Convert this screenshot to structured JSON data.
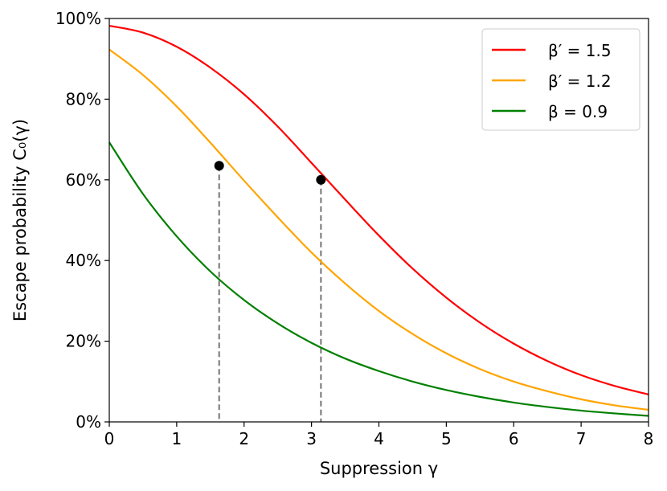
{
  "chart_data": {
    "type": "line",
    "xlabel": "Suppression γ",
    "ylabel": "Escape probability C₀(γ)",
    "xlim": [
      0,
      8
    ],
    "ylim": [
      0,
      100
    ],
    "x_ticks": [
      "0",
      "1",
      "2",
      "3",
      "4",
      "5",
      "6",
      "7",
      "8"
    ],
    "y_ticks": [
      "0%",
      "20%",
      "40%",
      "60%",
      "80%",
      "100%"
    ],
    "grid": false,
    "legend_position": "top-right",
    "x": [
      0,
      0.5,
      1,
      1.5,
      2,
      2.5,
      3,
      3.5,
      4,
      4.5,
      5,
      5.5,
      6,
      6.5,
      7,
      7.5,
      8
    ],
    "series": [
      {
        "name": "β′ = 1.5",
        "color": "#ff0000",
        "values": [
          98.2,
          96.5,
          93.0,
          87.8,
          81.2,
          73.2,
          64.2,
          55.1,
          46.2,
          38.0,
          30.8,
          24.6,
          19.4,
          15.1,
          11.6,
          8.9,
          6.8
        ]
      },
      {
        "name": "β′ = 1.2",
        "color": "#ffa500",
        "values": [
          92.3,
          86.0,
          78.2,
          69.2,
          59.8,
          50.7,
          42.0,
          34.3,
          27.5,
          21.8,
          17.0,
          13.1,
          10.0,
          7.6,
          5.6,
          4.1,
          3.0
        ]
      },
      {
        "name": "β = 0.9",
        "color": "#008000",
        "values": [
          69.3,
          56.5,
          46.0,
          37.3,
          30.2,
          24.4,
          19.6,
          15.7,
          12.6,
          10.0,
          7.9,
          6.2,
          4.8,
          3.7,
          2.8,
          2.1,
          1.5
        ]
      }
    ],
    "markers": [
      {
        "x": 1.63,
        "y": 63.5,
        "series": "β′ = 1.2"
      },
      {
        "x": 3.14,
        "y": 60.0,
        "series": "β′ = 1.5"
      }
    ]
  }
}
